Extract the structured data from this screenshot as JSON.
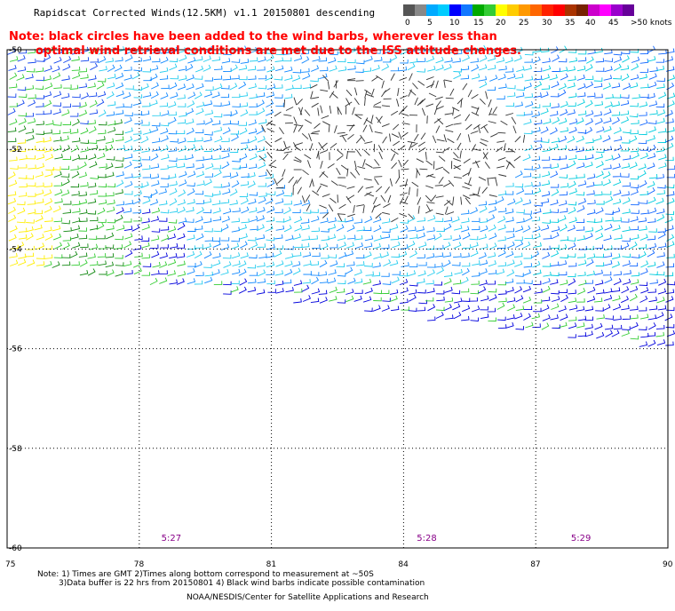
{
  "title": "Rapidscat Corrected Winds(12.5KM) v1.1 20150801 descending",
  "note_line1": "Note: black circles have been added to the wind barbs, wherever less than",
  "note_line2": "optimal wind retrieval conditions are met due to the ISS attitude changes.",
  "colorbar": {
    "colors": [
      "#555555",
      "#888888",
      "#00aaff",
      "#00ccff",
      "#0000ff",
      "#1177ff",
      "#00aa00",
      "#33cc33",
      "#ffff00",
      "#ffcc00",
      "#ff9900",
      "#ff6600",
      "#ff2200",
      "#ff0000",
      "#aa3300",
      "#772200",
      "#cc00cc",
      "#ff00ff",
      "#9900cc",
      "#660099"
    ],
    "labels": [
      "0",
      "5",
      "10",
      "15",
      "20",
      "25",
      "30",
      "35",
      "40",
      "45",
      ">50 knots"
    ]
  },
  "lat_labels": [
    "-50",
    "-52",
    "-54",
    "-56",
    "-58",
    "-60"
  ],
  "lon_labels": [
    "75",
    "78",
    "81",
    "84",
    "87",
    "90"
  ],
  "times": [
    "5:27",
    "5:28",
    "5:29"
  ],
  "footnote_line1": "Note: 1) Times are GMT 2)Times along bottom correspond to measurement at ~50S",
  "footnote_line2": "3)Data buffer is 22 hrs from 20150801 4) Black wind barbs indicate possible contamination",
  "credit": "NOAA/NESDIS/Center for Satellite Applications and Research",
  "chart_data": {
    "type": "wind-barb map",
    "xlim": [
      75,
      90
    ],
    "ylim": [
      -60,
      -50
    ],
    "xticks": [
      75,
      78,
      81,
      84,
      87,
      90
    ],
    "yticks": [
      -50,
      -52,
      -54,
      -56,
      -58,
      -60
    ],
    "grid": true,
    "time_annotations": [
      {
        "lon": 78.5,
        "label": "5:27"
      },
      {
        "lon": 84.3,
        "label": "5:28"
      },
      {
        "lon": 87.8,
        "label": "5:29"
      }
    ],
    "speed_bins_knots": [
      0,
      5,
      10,
      15,
      20,
      25,
      30,
      35,
      40,
      45,
      50
    ]
  }
}
